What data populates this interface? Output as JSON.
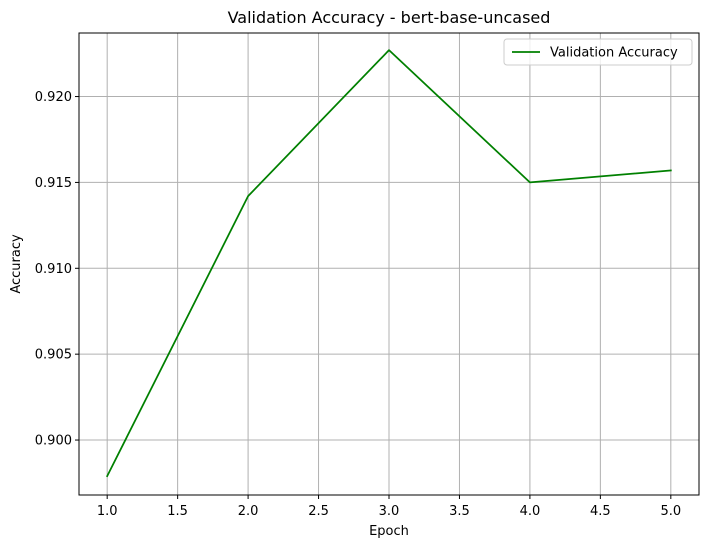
{
  "chart_data": {
    "type": "line",
    "title": "Validation Accuracy - bert-base-uncased",
    "xlabel": "Epoch",
    "ylabel": "Accuracy",
    "xlim": [
      0.8,
      5.2
    ],
    "ylim": [
      0.8968,
      0.9237
    ],
    "xticks": [
      1.0,
      1.5,
      2.0,
      2.5,
      3.0,
      3.5,
      4.0,
      4.5,
      5.0
    ],
    "xtick_labels": [
      "1.0",
      "1.5",
      "2.0",
      "2.5",
      "3.0",
      "3.5",
      "4.0",
      "4.5",
      "5.0"
    ],
    "yticks": [
      0.9,
      0.905,
      0.91,
      0.915,
      0.92
    ],
    "ytick_labels": [
      "0.900",
      "0.905",
      "0.910",
      "0.915",
      "0.920"
    ],
    "grid": true,
    "legend": {
      "position": "top-right"
    },
    "series": [
      {
        "name": "Validation Accuracy",
        "color": "#008000",
        "x": [
          1,
          2,
          3,
          4,
          5
        ],
        "y": [
          0.8979,
          0.9142,
          0.9227,
          0.915,
          0.9157
        ]
      }
    ]
  }
}
